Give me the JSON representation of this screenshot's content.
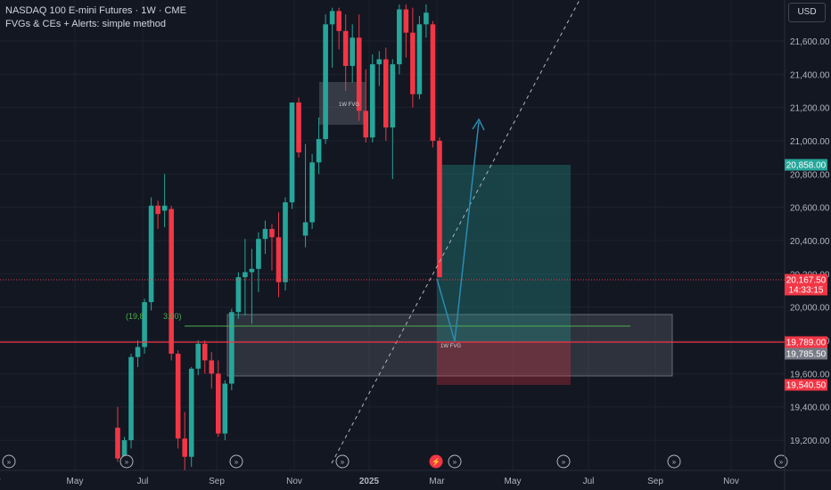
{
  "header": {
    "title": "NASDAQ 100 E-mini Futures · 1W · CME",
    "subtitle": "FVGs & CEs + Alerts: simple method"
  },
  "currency_button": "USD",
  "colors": {
    "background": "#131722",
    "up": "#26a69a",
    "down": "#f23645",
    "grid": "#1e222d",
    "axis_text": "#b2b5be"
  },
  "chart_data": {
    "type": "candlestick",
    "y_ticks": [
      "21,600.00",
      "21,400.00",
      "21,200.00",
      "21,000.00",
      "20,800.00",
      "20,600.00",
      "20,400.00",
      "20,200.00",
      "20,000.00",
      "19,800.00",
      "19,600.00",
      "19,400.00",
      "19,200.00"
    ],
    "x_ticks": [
      "Mar",
      "May",
      "Jul",
      "Sep",
      "Nov",
      "2025",
      "Mar",
      "May",
      "Jul",
      "Sep",
      "Nov"
    ],
    "price_labels": [
      {
        "text": "20,858.00",
        "price": 20858,
        "kind": "green"
      },
      {
        "text": "20,167.50",
        "price": 20167.5,
        "kind": "red"
      },
      {
        "text": "14:33:15",
        "price": 20103,
        "kind": "red"
      },
      {
        "text": "19,789.00",
        "price": 19789,
        "kind": "red"
      },
      {
        "text": "19,785.50",
        "price": 19785.5,
        "kind": "gray"
      },
      {
        "text": "19,540.50",
        "price": 19540.5,
        "kind": "red"
      }
    ],
    "annotations": {
      "fvg_upper": "1W FVG",
      "fvg_lower": "1W FVG",
      "ce_label": "(19,8",
      "ce_label2": "3.00)"
    },
    "candles": [
      {
        "o": 19275,
        "h": 19400,
        "l": 19070,
        "c": 19090
      },
      {
        "o": 19090,
        "h": 19220,
        "l": 19060,
        "c": 19200
      },
      {
        "o": 19200,
        "h": 19720,
        "l": 19150,
        "c": 19700
      },
      {
        "o": 19700,
        "h": 19800,
        "l": 19640,
        "c": 19760
      },
      {
        "o": 19760,
        "h": 20050,
        "l": 19720,
        "c": 20030
      },
      {
        "o": 20030,
        "h": 20660,
        "l": 19980,
        "c": 20610
      },
      {
        "o": 20610,
        "h": 20640,
        "l": 20470,
        "c": 20560
      },
      {
        "o": 20580,
        "h": 20800,
        "l": 20480,
        "c": 20610
      },
      {
        "o": 20590,
        "h": 20610,
        "l": 19680,
        "c": 19720
      },
      {
        "o": 19720,
        "h": 19740,
        "l": 19150,
        "c": 19210
      },
      {
        "o": 19210,
        "h": 19370,
        "l": 19020,
        "c": 19100
      },
      {
        "o": 19100,
        "h": 19640,
        "l": 19040,
        "c": 19630
      },
      {
        "o": 19630,
        "h": 19800,
        "l": 19590,
        "c": 19780
      },
      {
        "o": 19780,
        "h": 19800,
        "l": 19600,
        "c": 19680
      },
      {
        "o": 19680,
        "h": 19730,
        "l": 19510,
        "c": 19600
      },
      {
        "o": 19600,
        "h": 19680,
        "l": 19220,
        "c": 19240
      },
      {
        "o": 19240,
        "h": 19560,
        "l": 19200,
        "c": 19540
      },
      {
        "o": 19540,
        "h": 19990,
        "l": 19500,
        "c": 19970
      },
      {
        "o": 19970,
        "h": 20210,
        "l": 19930,
        "c": 20180
      },
      {
        "o": 20180,
        "h": 20410,
        "l": 19950,
        "c": 20210
      },
      {
        "o": 20210,
        "h": 20350,
        "l": 19900,
        "c": 20230
      },
      {
        "o": 20230,
        "h": 20450,
        "l": 20090,
        "c": 20410
      },
      {
        "o": 20410,
        "h": 20520,
        "l": 20320,
        "c": 20470
      },
      {
        "o": 20470,
        "h": 20500,
        "l": 20220,
        "c": 20420
      },
      {
        "o": 20420,
        "h": 20570,
        "l": 20060,
        "c": 20150
      },
      {
        "o": 20150,
        "h": 20660,
        "l": 20100,
        "c": 20630
      },
      {
        "o": 20630,
        "h": 21230,
        "l": 20590,
        "c": 21230
      },
      {
        "o": 21230,
        "h": 21260,
        "l": 20900,
        "c": 20930
      },
      {
        "o": 20430,
        "h": 20980,
        "l": 20360,
        "c": 20510
      },
      {
        "o": 20510,
        "h": 20920,
        "l": 20470,
        "c": 20870
      },
      {
        "o": 20870,
        "h": 21140,
        "l": 20800,
        "c": 21010
      },
      {
        "o": 21010,
        "h": 21760,
        "l": 20980,
        "c": 21700
      },
      {
        "o": 21700,
        "h": 21800,
        "l": 21440,
        "c": 21780
      },
      {
        "o": 21780,
        "h": 21800,
        "l": 21550,
        "c": 21660
      },
      {
        "o": 21660,
        "h": 21760,
        "l": 21300,
        "c": 21450
      },
      {
        "o": 21450,
        "h": 21700,
        "l": 21350,
        "c": 21620
      },
      {
        "o": 21620,
        "h": 21760,
        "l": 21120,
        "c": 21180
      },
      {
        "o": 21180,
        "h": 21430,
        "l": 20990,
        "c": 21020
      },
      {
        "o": 21020,
        "h": 21520,
        "l": 20990,
        "c": 21460
      },
      {
        "o": 21460,
        "h": 21540,
        "l": 21330,
        "c": 21490
      },
      {
        "o": 21490,
        "h": 21560,
        "l": 21000,
        "c": 21080
      },
      {
        "o": 21080,
        "h": 21490,
        "l": 20770,
        "c": 21460
      },
      {
        "o": 21460,
        "h": 21820,
        "l": 21400,
        "c": 21790
      },
      {
        "o": 21790,
        "h": 21820,
        "l": 21500,
        "c": 21650
      },
      {
        "o": 21650,
        "h": 21800,
        "l": 21200,
        "c": 21280
      },
      {
        "o": 21280,
        "h": 21750,
        "l": 21250,
        "c": 21700
      },
      {
        "o": 21700,
        "h": 21820,
        "l": 21620,
        "c": 21770
      },
      {
        "o": 21700,
        "h": 21720,
        "l": 20960,
        "c": 21000
      },
      {
        "o": 21000,
        "h": 21020,
        "l": 20180,
        "c": 20180
      }
    ]
  }
}
